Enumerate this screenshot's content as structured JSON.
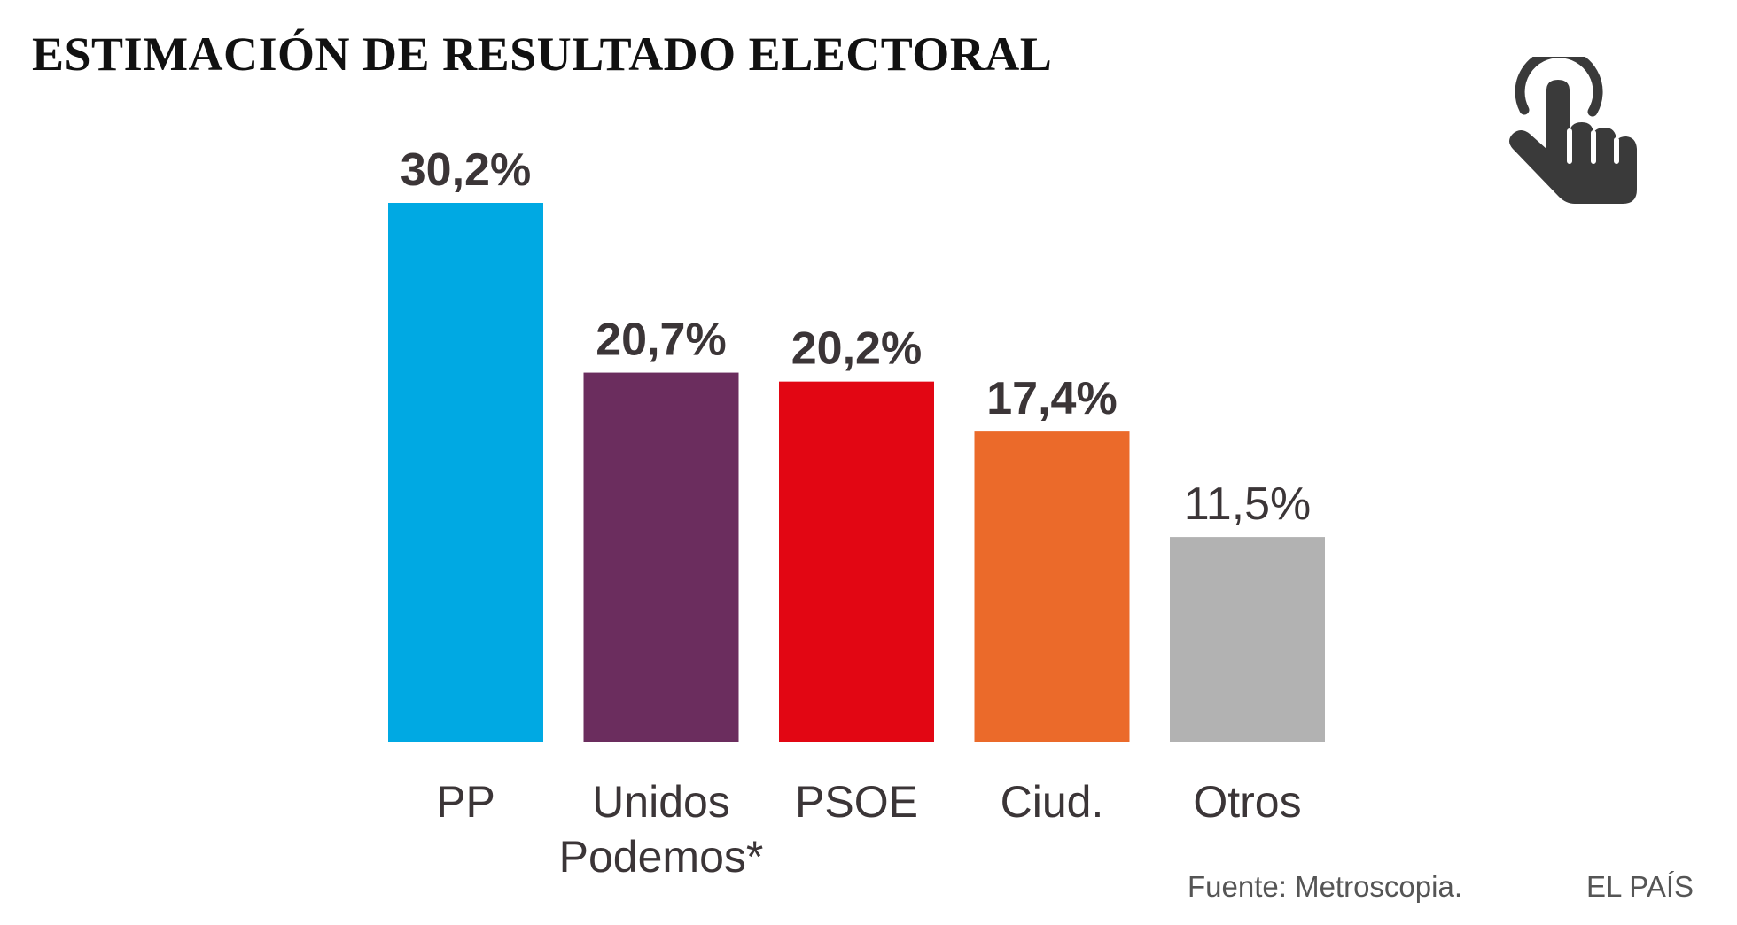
{
  "title": "ESTIMACIÓN DE RESULTADO ELECTORAL",
  "icon": "tap-hand-icon",
  "source": "Fuente: Metroscopia.",
  "brand": "EL PAÍS",
  "colors": {
    "text": "#3b3537",
    "icon": "#3a3a3a"
  },
  "chart_data": {
    "type": "bar",
    "title": "ESTIMACIÓN DE RESULTADO ELECTORAL",
    "xlabel": "",
    "ylabel": "",
    "ylim": [
      0,
      30.2
    ],
    "grid": false,
    "legend": "none",
    "categories": [
      [
        "PP"
      ],
      [
        "Unidos",
        "Podemos*"
      ],
      [
        "PSOE"
      ],
      [
        "Ciud."
      ],
      [
        "Otros"
      ]
    ],
    "values": [
      30.2,
      20.7,
      20.2,
      17.4,
      11.5
    ],
    "value_labels": [
      "30,2%",
      "20,7%",
      "20,2%",
      "17,4%",
      "11,5%"
    ],
    "label_weights": [
      "bold",
      "bold",
      "bold",
      "bold",
      "light"
    ],
    "colors": [
      "#00a9e3",
      "#6b2d5e",
      "#e20613",
      "#eb6a2a",
      "#b2b2b2"
    ]
  }
}
